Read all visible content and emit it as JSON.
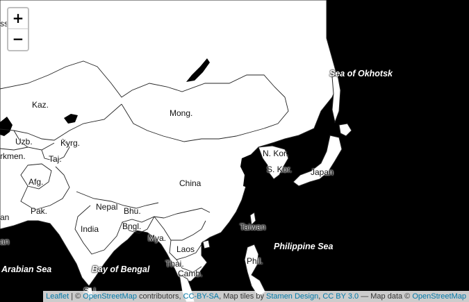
{
  "map": {
    "zoom_in_label": "+",
    "zoom_out_label": "−",
    "countries": {
      "kaz": "Kaz.",
      "mong": "Mong.",
      "uzb": "Uzb.",
      "kyrg": "Kyrg.",
      "turkmen": "rkmen.",
      "taj": "Taj.",
      "afg": "Afg.",
      "pak": "Pak.",
      "nepal": "Nepal",
      "bhu": "Bhu.",
      "india": "India",
      "bngl": "Bngl.",
      "mya": "Mya.",
      "laos": "Laos",
      "thai": "Thai.",
      "camb": "Camb.",
      "china": "China",
      "n_kor": "N. Kor.",
      "s_kor": "S. Kor.",
      "japan": "Japan",
      "taiwan": "Taiwan",
      "phil": "Phil.",
      "russia_partial": "ssia",
      "iran_partial": "an",
      "oman_partial": "an",
      "sri_lanka_partial": "S. L."
    },
    "seas": {
      "okhotsk": "Sea of Okhotsk",
      "philippine": "Philippine Sea",
      "arabian": "Arabian Sea",
      "bengal": "Bay of Bengal"
    }
  },
  "attribution": {
    "leaflet": "Leaflet",
    "sep1": " | © ",
    "osm": "OpenStreetMap",
    "contrib": " contributors, ",
    "ccbysa": "CC-BY-SA",
    "tiles": ", Map tiles by ",
    "stamen": "Stamen Design",
    "comma": ", ",
    "ccby": "CC BY 3.0",
    "mapdata": " — Map data © ",
    "osm2": "OpenStreetMap"
  }
}
